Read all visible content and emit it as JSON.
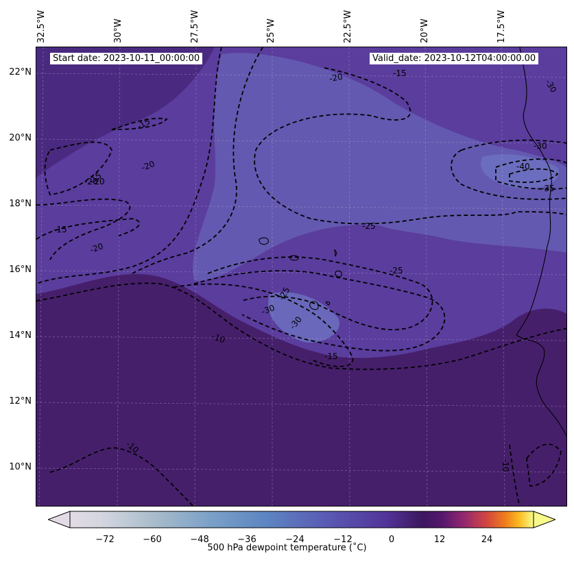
{
  "header": {
    "start_date": "Start date: 2023-10-11_00:00:00",
    "valid_date": "Valid_date: 2023-10-12T04:00:00.00"
  },
  "axes": {
    "lon_labels": [
      "32.5°W",
      "30°W",
      "27.5°W",
      "25°W",
      "22.5°W",
      "20°W",
      "17.5°W"
    ],
    "lat_labels": [
      "22°N",
      "20°N",
      "18°N",
      "16°N",
      "14°N",
      "12°N",
      "10°N"
    ]
  },
  "contour_labels": [
    "-20",
    "-15",
    "-20",
    "-15",
    "-15",
    "-20",
    "-20",
    "-25",
    "-25",
    "-25",
    "-30",
    "-30",
    "-15",
    "-10",
    "-30",
    "-40",
    "-35",
    "-30",
    "-10",
    "-10",
    "-15",
    "-20"
  ],
  "colorbar": {
    "title": "500 hPa dewpoint temperature (˚C)",
    "ticks": [
      "−72",
      "−60",
      "−48",
      "−36",
      "−24",
      "−12",
      "0",
      "12",
      "24"
    ],
    "colors": {
      "low": "#e3dce6",
      "mid_blue": "#5d86c2",
      "purple": "#5a3b9e",
      "dark": "#3d175f",
      "orange": "#f07f1a",
      "high": "#f8f98a"
    }
  },
  "map_colors": {
    "background": "#5a3d9d",
    "dark_region": "#461f6b",
    "light_region": "#6a63b8"
  }
}
